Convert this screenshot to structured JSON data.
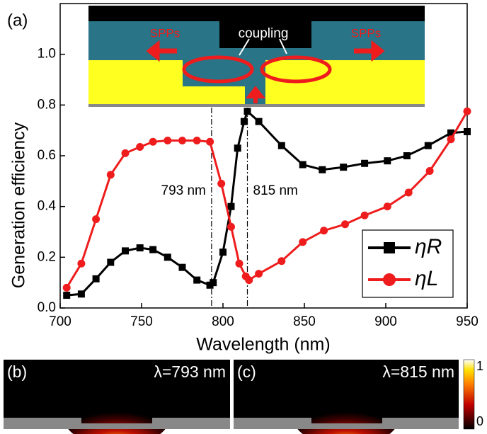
{
  "chart_data": {
    "type": "line",
    "panel_label": "(a)",
    "xlabel": "Wavelength (nm)",
    "ylabel": "Generation efficiency",
    "xlim": [
      700,
      950
    ],
    "ylim": [
      0,
      1.2
    ],
    "xticks": [
      700,
      750,
      800,
      850,
      900,
      950
    ],
    "yticks": [
      {
        "value": 0,
        "label": "0.0"
      },
      0.2,
      0.4,
      0.6,
      0.8,
      {
        "value": 1,
        "label": "1.0"
      }
    ],
    "legend": "lower right",
    "series": [
      {
        "name": "ηR",
        "color": "#000000",
        "marker": "square",
        "x": [
          704,
          713,
          722,
          731,
          740,
          749,
          757,
          766,
          775,
          784,
          792,
          794,
          800,
          805,
          809,
          813,
          815,
          822,
          836,
          849,
          861,
          874,
          887,
          901,
          913,
          926,
          940,
          950
        ],
        "values": [
          0.05,
          0.055,
          0.115,
          0.18,
          0.225,
          0.237,
          0.23,
          0.2,
          0.16,
          0.11,
          0.09,
          0.1,
          0.22,
          0.4,
          0.63,
          0.735,
          0.775,
          0.735,
          0.64,
          0.565,
          0.545,
          0.555,
          0.57,
          0.58,
          0.6,
          0.64,
          0.69,
          0.695
        ]
      },
      {
        "name": "ηL",
        "color": "#ee1c1c",
        "marker": "circle",
        "x": [
          704,
          713,
          722,
          731,
          740,
          749,
          757,
          766,
          775,
          784,
          792,
          799,
          805,
          810,
          814,
          816,
          822,
          836,
          849,
          862,
          875,
          887,
          901,
          914,
          927,
          940,
          950
        ],
        "values": [
          0.08,
          0.175,
          0.35,
          0.525,
          0.61,
          0.635,
          0.655,
          0.66,
          0.66,
          0.66,
          0.655,
          0.49,
          0.32,
          0.175,
          0.125,
          0.11,
          0.135,
          0.185,
          0.26,
          0.305,
          0.33,
          0.365,
          0.4,
          0.455,
          0.54,
          0.665,
          0.775
        ]
      }
    ],
    "annotations": [
      {
        "value": 793,
        "label": "793 nm"
      },
      {
        "value": 815,
        "label": "815 nm"
      }
    ],
    "inset_labels": {
      "left": "SPPs",
      "center": "coupling",
      "right": "SPPs"
    },
    "field_maps": [
      {
        "label": "(b)",
        "title": "λ=793 nm"
      },
      {
        "label": "(c)",
        "title": "λ=815 nm"
      }
    ],
    "colorbar_ticks": [
      0,
      1
    ]
  }
}
